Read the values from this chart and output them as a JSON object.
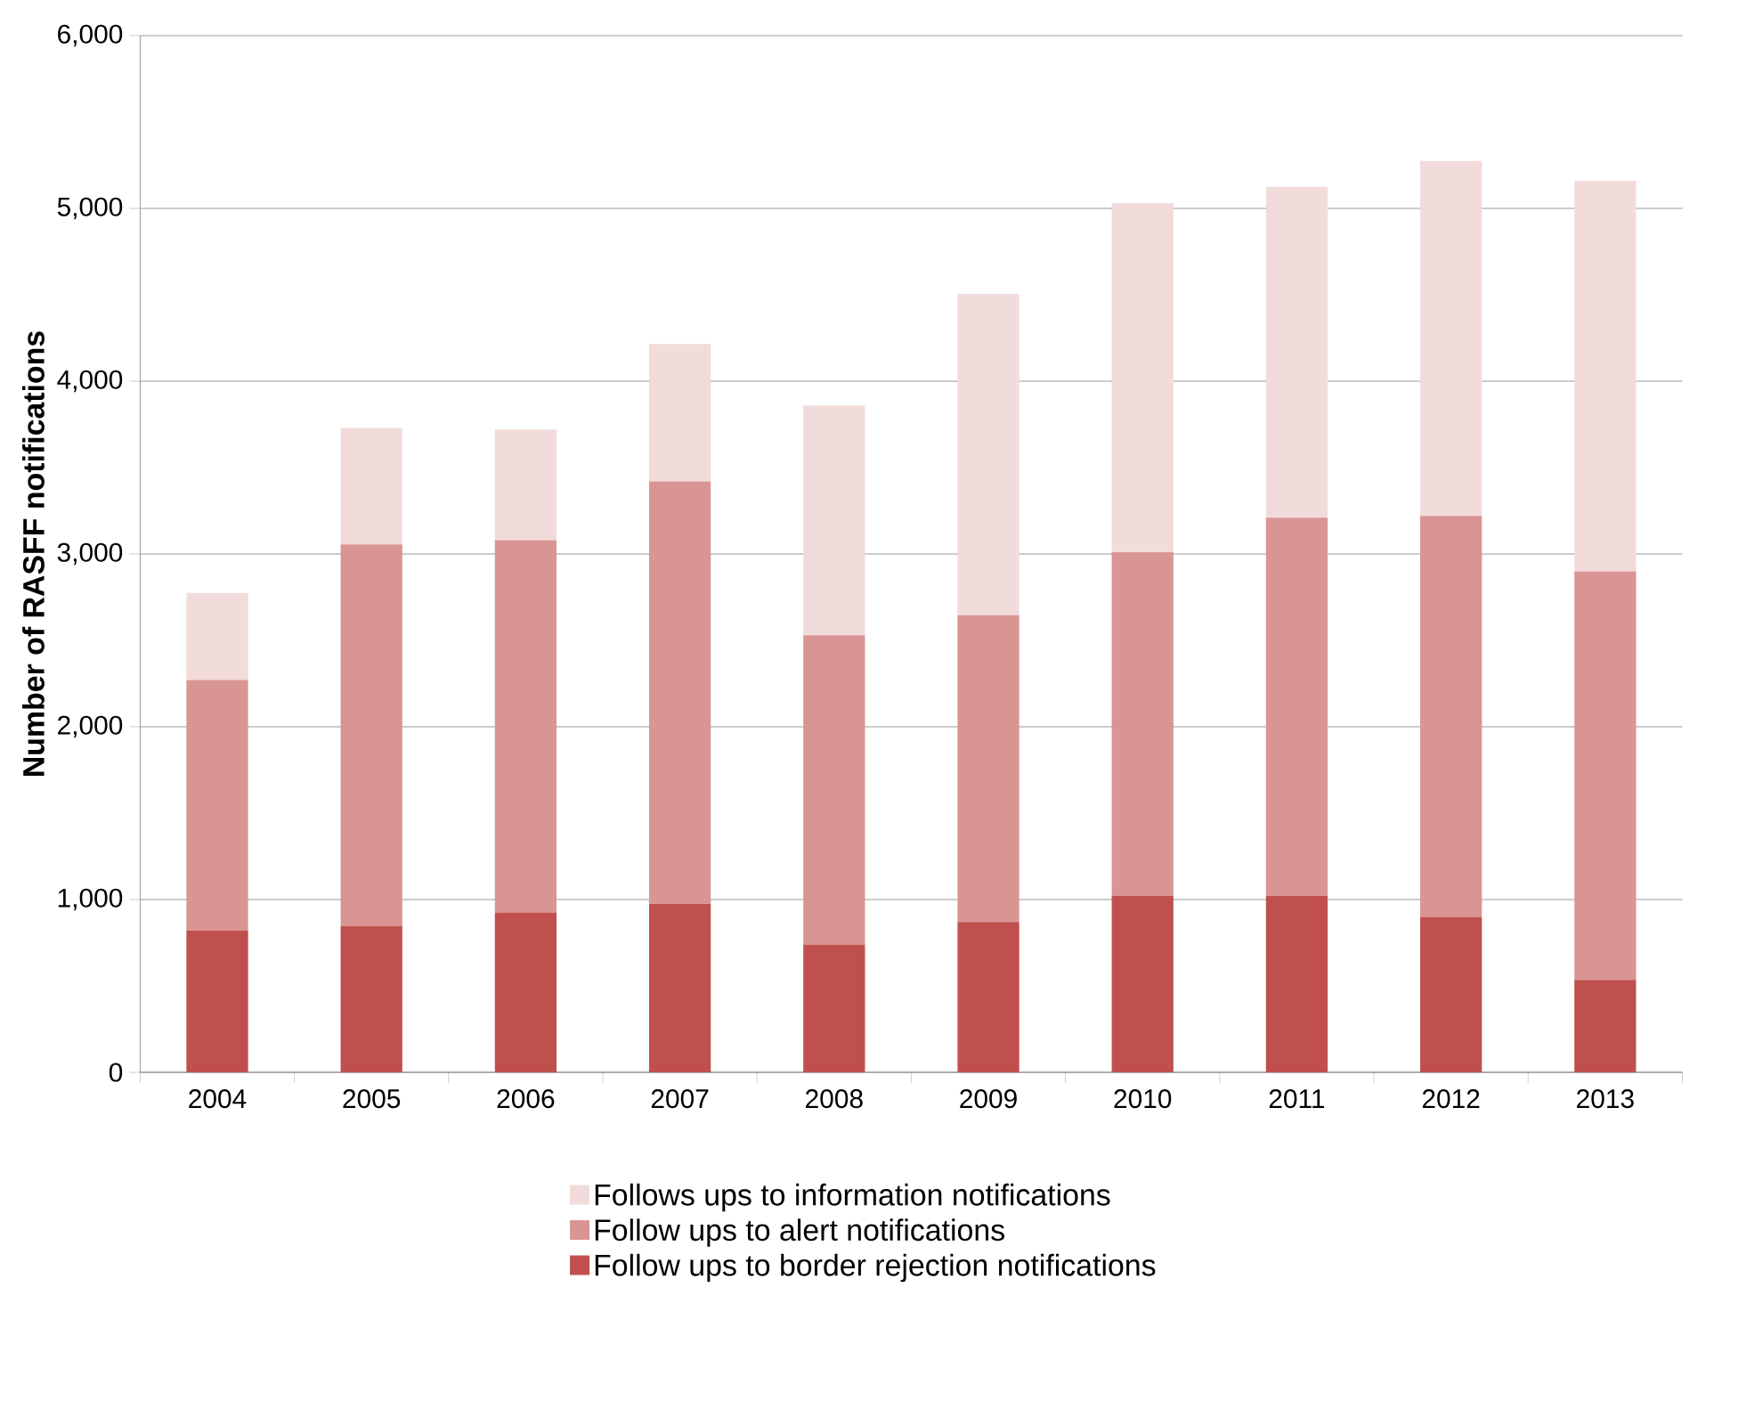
{
  "chart_data": {
    "type": "bar",
    "stacked": true,
    "ylabel": "Number of RASFF notifications",
    "categories": [
      "2004",
      "2005",
      "2006",
      "2007",
      "2008",
      "2009",
      "2010",
      "2011",
      "2012",
      "2013"
    ],
    "series": [
      {
        "name": "Follow ups to border rejection notifications",
        "color": "#c0504d",
        "values": [
          820,
          845,
          925,
          975,
          740,
          870,
          1020,
          1020,
          900,
          535
        ]
      },
      {
        "name": "Follow ups to alert notifications",
        "color": "#d99594",
        "values": [
          1450,
          2210,
          2155,
          2445,
          1790,
          1775,
          1990,
          2190,
          2320,
          2365
        ]
      },
      {
        "name": "Follows ups to information notifications",
        "color": "#f2dcdb",
        "values": [
          505,
          675,
          640,
          795,
          1330,
          1860,
          2020,
          1915,
          2055,
          2260
        ]
      }
    ],
    "ylim": [
      0,
      6000
    ],
    "yticks": [
      0,
      {
        "value": 1000,
        "label": "1,000"
      },
      {
        "value": 2000,
        "label": "2,000"
      },
      {
        "value": 3000,
        "label": "3,000"
      },
      {
        "value": 4000,
        "label": "4,000"
      },
      {
        "value": 5000,
        "label": "5,000"
      },
      {
        "value": 6000,
        "label": "6,000"
      }
    ],
    "grid": "y",
    "legend": "bottom"
  }
}
